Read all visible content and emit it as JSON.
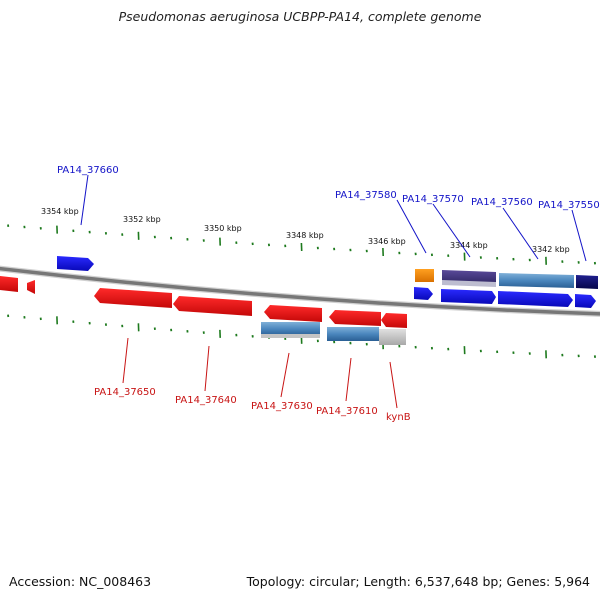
{
  "title": "Pseudomonas aeruginosa UCBPP-PA14, complete genome",
  "footer": {
    "accession": "Accession: NC_008463",
    "summary": "Topology: circular; Length: 6,537,648 bp; Genes: 5,964"
  },
  "ticks": [
    "3354 kbp",
    "3352 kbp",
    "3350 kbp",
    "3348 kbp",
    "3346 kbp",
    "3344 kbp",
    "3342 kbp"
  ],
  "top_labels": [
    "PA14_37660",
    "PA14_37580",
    "PA14_37570",
    "PA14_37560",
    "PA14_37550"
  ],
  "bottom_labels": [
    "PA14_37650",
    "PA14_37640",
    "PA14_37630",
    "PA14_37610",
    "kynB"
  ],
  "colors": {
    "forward": "#1414e6",
    "reverse": "#e61414",
    "backbone": "#777777",
    "tick": "#1e7a1e",
    "label_top": "#1414c8",
    "label_bottom": "#c81414"
  }
}
